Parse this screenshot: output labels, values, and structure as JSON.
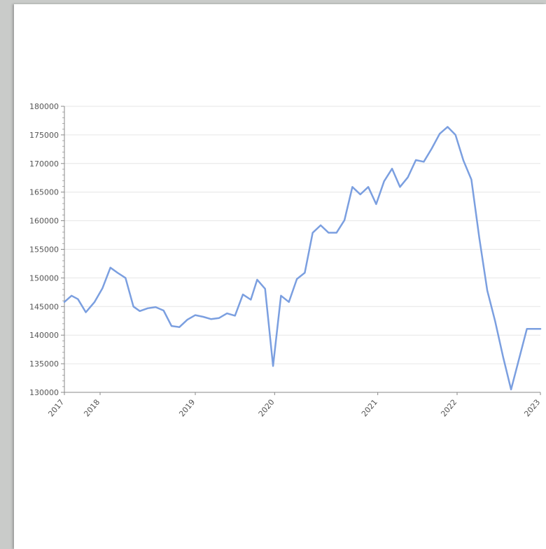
{
  "chart_data": {
    "type": "line",
    "title": "",
    "xlabel": "",
    "ylabel": "",
    "xlim": [
      2017.0,
      2023.0
    ],
    "ylim": [
      130000,
      180000
    ],
    "y_ticks": [
      130000,
      135000,
      140000,
      145000,
      150000,
      155000,
      160000,
      165000,
      170000,
      175000,
      180000
    ],
    "x_ticks": [
      {
        "label": "2017",
        "value": 2017.0
      },
      {
        "label": "2018",
        "value": 2017.45
      },
      {
        "label": "2019",
        "value": 2018.65
      },
      {
        "label": "2020",
        "value": 2019.65
      },
      {
        "label": "2021",
        "value": 2020.95
      },
      {
        "label": "2022",
        "value": 2021.95
      },
      {
        "label": "2023",
        "value": 2023.0
      }
    ],
    "grid": true,
    "color": "#7b9fe0",
    "series": [
      {
        "x": [
          2017.0,
          2017.09,
          2017.17,
          2017.27,
          2017.38,
          2017.48,
          2017.58,
          2017.67,
          2017.77,
          2017.87,
          2017.95,
          2018.05,
          2018.15,
          2018.25,
          2018.35,
          2018.45,
          2018.55,
          2018.65,
          2018.75,
          2018.85,
          2018.95,
          2019.05,
          2019.15,
          2019.25,
          2019.35,
          2019.43,
          2019.53,
          2019.63,
          2019.73,
          2019.83,
          2019.93,
          2020.03,
          2020.13,
          2020.23,
          2020.33,
          2020.43,
          2020.53,
          2020.63,
          2020.73,
          2020.83,
          2020.93,
          2021.03,
          2021.13,
          2021.23,
          2021.33,
          2021.43,
          2021.53,
          2021.63,
          2021.73,
          2021.83,
          2021.93,
          2022.03,
          2022.13,
          2022.23,
          2022.33,
          2022.43,
          2022.53,
          2022.63,
          2022.73,
          2022.83,
          2022.93,
          2023.0
        ],
        "y": [
          145800,
          146900,
          146300,
          144000,
          145800,
          148200,
          151800,
          150900,
          150000,
          145000,
          144200,
          144700,
          144900,
          144300,
          141600,
          141400,
          142700,
          143500,
          143200,
          142800,
          143000,
          143800,
          143400,
          147100,
          146200,
          149700,
          148100,
          134600,
          146900,
          145800,
          149800,
          150900,
          157900,
          159200,
          157900,
          157900,
          160100,
          165900,
          164600,
          165900,
          162900,
          166900,
          169100,
          165900,
          167600,
          170600,
          170300,
          172600,
          175200,
          176400,
          175000,
          170500,
          167200,
          157000,
          147800,
          142400,
          136200,
          130500,
          135800,
          141100,
          141100,
          141100
        ]
      }
    ]
  }
}
